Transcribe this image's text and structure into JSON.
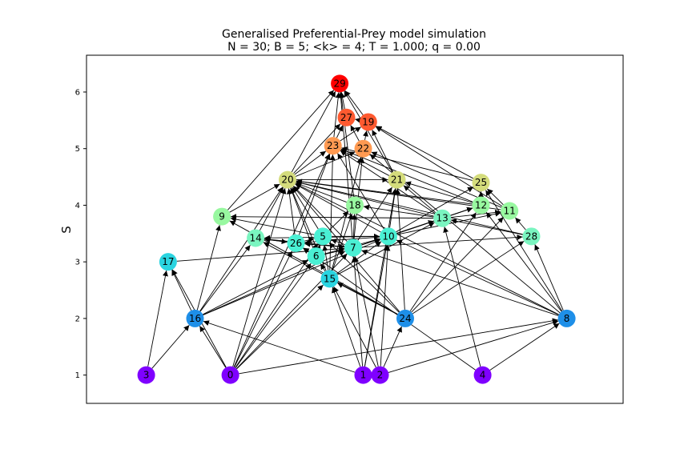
{
  "title_line1": "Generalised Preferential-Prey model simulation",
  "title_line2": "N = 30; B = 5; <k> = 4; T = 1.000; q = 0.00",
  "ylabel": "S",
  "chart_data": {
    "type": "network",
    "ylim": [
      0.5,
      6.65
    ],
    "xlim": [
      0,
      30
    ],
    "yticks": [
      "1",
      "2",
      "3",
      "4",
      "5",
      "6"
    ],
    "nodes": [
      {
        "id": "0",
        "x": 7.6,
        "s": 1.0,
        "color": "#7f00ff"
      },
      {
        "id": "1",
        "x": 15.5,
        "s": 1.0,
        "color": "#7f00ff"
      },
      {
        "id": "2",
        "x": 16.5,
        "s": 1.0,
        "color": "#7f00ff"
      },
      {
        "id": "3",
        "x": 2.6,
        "s": 1.0,
        "color": "#7f00ff"
      },
      {
        "id": "4",
        "x": 22.6,
        "s": 1.0,
        "color": "#7f00ff"
      },
      {
        "id": "16",
        "x": 5.5,
        "s": 2.0,
        "color": "#1e8fe8"
      },
      {
        "id": "24",
        "x": 18.0,
        "s": 2.0,
        "color": "#1e8fe8"
      },
      {
        "id": "8",
        "x": 27.6,
        "s": 2.0,
        "color": "#1e8fe8"
      },
      {
        "id": "15",
        "x": 13.5,
        "s": 2.7,
        "color": "#2ad4e0"
      },
      {
        "id": "17",
        "x": 3.9,
        "s": 3.0,
        "color": "#2ad4e0"
      },
      {
        "id": "6",
        "x": 12.7,
        "s": 3.1,
        "color": "#4af0d4"
      },
      {
        "id": "7",
        "x": 14.9,
        "s": 3.25,
        "color": "#4af0d4"
      },
      {
        "id": "26",
        "x": 11.5,
        "s": 3.33,
        "color": "#4af0d4"
      },
      {
        "id": "5",
        "x": 13.1,
        "s": 3.45,
        "color": "#4af0d4"
      },
      {
        "id": "10",
        "x": 17.0,
        "s": 3.45,
        "color": "#4af0d4"
      },
      {
        "id": "14",
        "x": 9.1,
        "s": 3.42,
        "color": "#7af5c0"
      },
      {
        "id": "28",
        "x": 25.5,
        "s": 3.45,
        "color": "#7af5c0"
      },
      {
        "id": "13",
        "x": 20.2,
        "s": 3.77,
        "color": "#7af5c0"
      },
      {
        "id": "9",
        "x": 7.1,
        "s": 3.8,
        "color": "#98f8a0"
      },
      {
        "id": "18",
        "x": 15.0,
        "s": 4.0,
        "color": "#98f8a0"
      },
      {
        "id": "12",
        "x": 22.5,
        "s": 4.0,
        "color": "#98f8a0"
      },
      {
        "id": "11",
        "x": 24.2,
        "s": 3.9,
        "color": "#98f8a0"
      },
      {
        "id": "20",
        "x": 11.0,
        "s": 4.45,
        "color": "#d4dc7c"
      },
      {
        "id": "21",
        "x": 17.5,
        "s": 4.45,
        "color": "#d4dc7c"
      },
      {
        "id": "25",
        "x": 22.5,
        "s": 4.4,
        "color": "#d4dc7c"
      },
      {
        "id": "23",
        "x": 13.7,
        "s": 5.05,
        "color": "#ff9a52"
      },
      {
        "id": "22",
        "x": 15.5,
        "s": 5.0,
        "color": "#ff9a52"
      },
      {
        "id": "27",
        "x": 14.5,
        "s": 5.55,
        "color": "#ff5a30"
      },
      {
        "id": "19",
        "x": 15.8,
        "s": 5.47,
        "color": "#ff5a30"
      },
      {
        "id": "29",
        "x": 14.1,
        "s": 6.15,
        "color": "#ff0000"
      }
    ],
    "edges": [
      [
        "3",
        "16"
      ],
      [
        "3",
        "17"
      ],
      [
        "0",
        "16"
      ],
      [
        "0",
        "17"
      ],
      [
        "0",
        "6"
      ],
      [
        "0",
        "5"
      ],
      [
        "0",
        "7"
      ],
      [
        "0",
        "15"
      ],
      [
        "0",
        "26"
      ],
      [
        "0",
        "8"
      ],
      [
        "0",
        "23"
      ],
      [
        "0",
        "20"
      ],
      [
        "1",
        "16"
      ],
      [
        "1",
        "15"
      ],
      [
        "1",
        "7"
      ],
      [
        "1",
        "10"
      ],
      [
        "1",
        "21"
      ],
      [
        "2",
        "15"
      ],
      [
        "2",
        "10"
      ],
      [
        "2",
        "24"
      ],
      [
        "2",
        "8"
      ],
      [
        "2",
        "7"
      ],
      [
        "4",
        "13"
      ],
      [
        "4",
        "8"
      ],
      [
        "4",
        "26"
      ],
      [
        "16",
        "9"
      ],
      [
        "16",
        "17"
      ],
      [
        "16",
        "14"
      ],
      [
        "16",
        "10"
      ],
      [
        "16",
        "20"
      ],
      [
        "16",
        "7"
      ],
      [
        "16",
        "6"
      ],
      [
        "24",
        "15"
      ],
      [
        "24",
        "14"
      ],
      [
        "24",
        "9"
      ],
      [
        "24",
        "21"
      ],
      [
        "24",
        "12"
      ],
      [
        "24",
        "11"
      ],
      [
        "24",
        "20"
      ],
      [
        "24",
        "5"
      ],
      [
        "24",
        "28"
      ],
      [
        "8",
        "28"
      ],
      [
        "8",
        "7"
      ],
      [
        "8",
        "12"
      ],
      [
        "8",
        "22"
      ],
      [
        "8",
        "25"
      ],
      [
        "8",
        "20"
      ],
      [
        "8",
        "10"
      ],
      [
        "15",
        "6"
      ],
      [
        "15",
        "5"
      ],
      [
        "15",
        "18"
      ],
      [
        "15",
        "20"
      ],
      [
        "15",
        "10"
      ],
      [
        "15",
        "13"
      ],
      [
        "15",
        "23"
      ],
      [
        "15",
        "22"
      ],
      [
        "17",
        "7"
      ],
      [
        "6",
        "5"
      ],
      [
        "6",
        "20"
      ],
      [
        "6",
        "7"
      ],
      [
        "6",
        "10"
      ],
      [
        "6",
        "26"
      ],
      [
        "7",
        "5"
      ],
      [
        "7",
        "20"
      ],
      [
        "7",
        "10"
      ],
      [
        "7",
        "18"
      ],
      [
        "7",
        "12"
      ],
      [
        "7",
        "21"
      ],
      [
        "7",
        "26"
      ],
      [
        "7",
        "28"
      ],
      [
        "7",
        "22"
      ],
      [
        "7",
        "29"
      ],
      [
        "26",
        "5"
      ],
      [
        "26",
        "20"
      ],
      [
        "26",
        "23"
      ],
      [
        "26",
        "14"
      ],
      [
        "5",
        "18"
      ],
      [
        "5",
        "20"
      ],
      [
        "5",
        "10"
      ],
      [
        "5",
        "9"
      ],
      [
        "10",
        "21"
      ],
      [
        "10",
        "12"
      ],
      [
        "10",
        "11"
      ],
      [
        "10",
        "25"
      ],
      [
        "10",
        "13"
      ],
      [
        "10",
        "20"
      ],
      [
        "10",
        "23"
      ],
      [
        "10",
        "26"
      ],
      [
        "10",
        "14"
      ],
      [
        "14",
        "20"
      ],
      [
        "14",
        "26"
      ],
      [
        "14",
        "7"
      ],
      [
        "28",
        "13"
      ],
      [
        "28",
        "20"
      ],
      [
        "28",
        "11"
      ],
      [
        "13",
        "18"
      ],
      [
        "13",
        "12"
      ],
      [
        "13",
        "11"
      ],
      [
        "13",
        "9"
      ],
      [
        "13",
        "20"
      ],
      [
        "13",
        "23"
      ],
      [
        "13",
        "21"
      ],
      [
        "9",
        "20"
      ],
      [
        "9",
        "29"
      ],
      [
        "18",
        "29"
      ],
      [
        "18",
        "20"
      ],
      [
        "12",
        "25"
      ],
      [
        "12",
        "20"
      ],
      [
        "12",
        "21"
      ],
      [
        "12",
        "23"
      ],
      [
        "11",
        "25"
      ],
      [
        "11",
        "20"
      ],
      [
        "11",
        "22"
      ],
      [
        "11",
        "19"
      ],
      [
        "20",
        "29"
      ],
      [
        "20",
        "23"
      ],
      [
        "20",
        "22"
      ],
      [
        "20",
        "21"
      ],
      [
        "20",
        "27"
      ],
      [
        "21",
        "29"
      ],
      [
        "21",
        "23"
      ],
      [
        "21",
        "19"
      ],
      [
        "25",
        "23"
      ],
      [
        "25",
        "19"
      ],
      [
        "23",
        "29"
      ],
      [
        "23",
        "27"
      ],
      [
        "23",
        "19"
      ],
      [
        "22",
        "19"
      ],
      [
        "22",
        "27"
      ],
      [
        "27",
        "29"
      ],
      [
        "19",
        "29"
      ],
      [
        "19",
        "27"
      ]
    ]
  }
}
